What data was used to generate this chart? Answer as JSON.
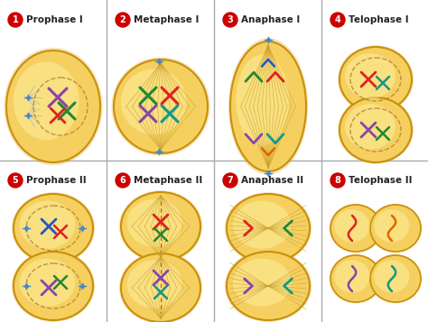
{
  "bg_color": "#ffffff",
  "cell_fill": "#f5d060",
  "cell_fill2": "#f0c840",
  "cell_edge": "#c8900a",
  "cell_gradient_inner": "#fdf0a0",
  "nucleus_fill": "#e0eef8",
  "nucleus_edge": "#b08030",
  "chr_purple": "#8844aa",
  "chr_red": "#dd2222",
  "chr_green": "#228833",
  "chr_teal": "#119988",
  "chr_orange": "#dd6600",
  "chr_blue": "#2255cc",
  "spin_color": "#c8a030",
  "number_color": "#cc0000",
  "label_color": "#222222",
  "grid_line_color": "#aaaaaa",
  "stages": [
    {
      "num": "1",
      "label": "Prophase I"
    },
    {
      "num": "2",
      "label": "Metaphase I"
    },
    {
      "num": "3",
      "label": "Anaphase I"
    },
    {
      "num": "4",
      "label": "Telophase I"
    },
    {
      "num": "5",
      "label": "Prophase II"
    },
    {
      "num": "6",
      "label": "Metaphase II"
    },
    {
      "num": "7",
      "label": "Anaphase II"
    },
    {
      "num": "8",
      "label": "Telophase II"
    }
  ]
}
